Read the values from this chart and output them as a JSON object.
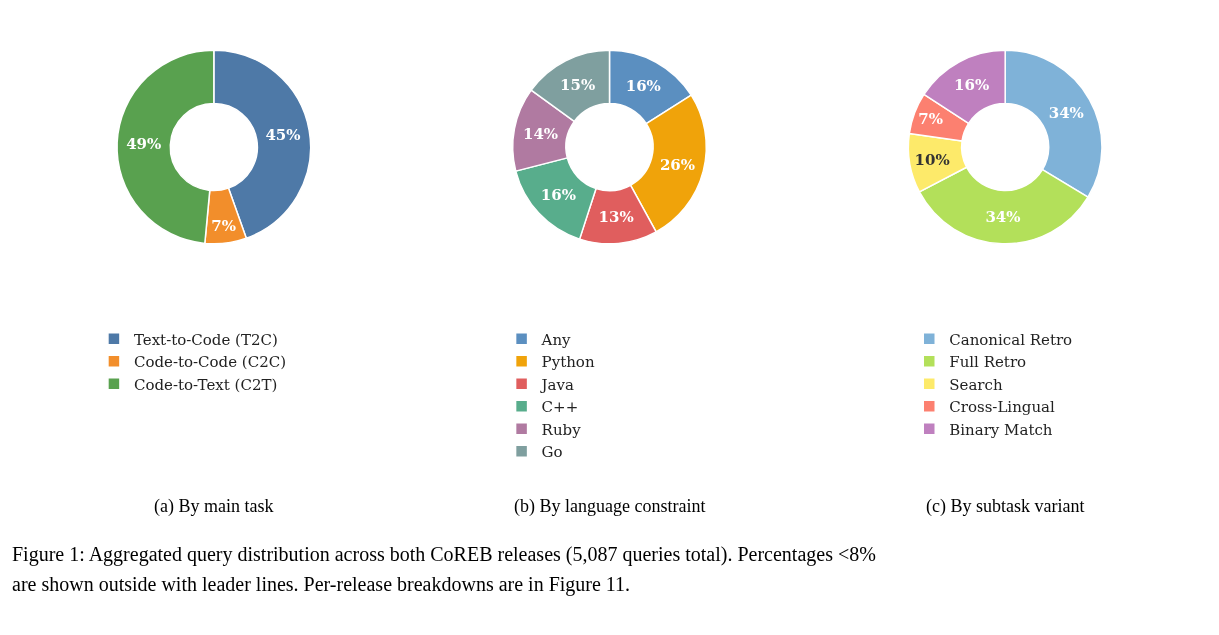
{
  "chart_data": [
    {
      "type": "donut",
      "title": "(a) By main task",
      "categories": [
        "Text-to-Code (T2C)",
        "Code-to-Code (C2C)",
        "Code-to-Text (C2T)"
      ],
      "values": [
        45,
        7,
        49
      ],
      "value_labels": [
        "45%",
        "7%",
        "49%"
      ],
      "colors": [
        "#4e79a7",
        "#f28e2b",
        "#59a14f"
      ],
      "legend": "bottom",
      "annotations": [
        "Figure 1: Aggregated query distribution across both CoREB releases (5,087 queries total). Percentages <8%",
        "are shown outside with leader lines. Per-release breakdowns are in Figure 11."
      ]
    },
    {
      "type": "donut",
      "title": "(b) By language constraint",
      "categories": [
        "Any",
        "Python",
        "Java",
        "C++",
        "Ruby",
        "Go"
      ],
      "values": [
        16,
        26,
        13,
        16,
        14,
        15
      ],
      "value_labels": [
        "16%",
        "26%",
        "13%",
        "16%",
        "14%",
        "15%"
      ],
      "colors": [
        "#5b8fc0",
        "#f0a30a",
        "#e05e5e",
        "#58ad8c",
        "#b07aa1",
        "#7f9f9f"
      ],
      "legend": "bottom"
    },
    {
      "type": "donut",
      "title": "(c) By subtask variant",
      "categories": [
        "Canonical Retro",
        "Full Retro",
        "Search",
        "Cross-Lingual",
        "Binary Match"
      ],
      "values": [
        34,
        34,
        10,
        7,
        16
      ],
      "value_labels": [
        "34%",
        "34%",
        "10%",
        "7%",
        "16%"
      ],
      "colors": [
        "#7fb2d8",
        "#b3e05a",
        "#fdea6a",
        "#fc8070",
        "#bf80bf"
      ],
      "legend": "bottom"
    }
  ]
}
